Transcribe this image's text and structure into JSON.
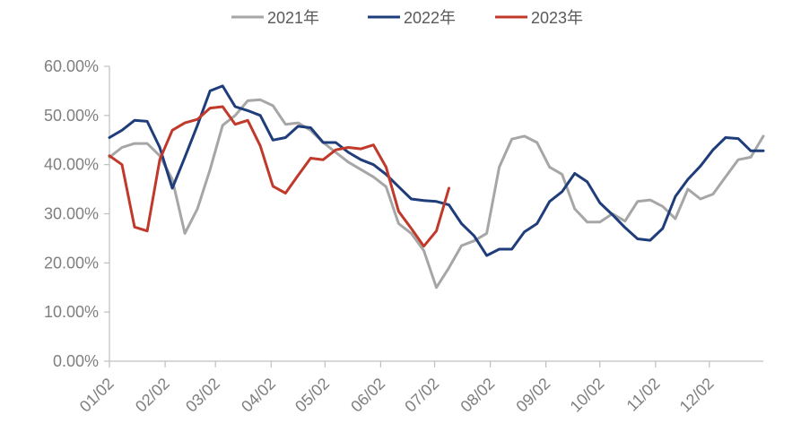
{
  "chart_data": {
    "type": "line",
    "title": "",
    "xlabel": "",
    "ylabel": "",
    "ylim": [
      0,
      60
    ],
    "x_range": [
      0,
      52
    ],
    "y_tick_values": [
      0,
      10,
      20,
      30,
      40,
      50,
      60
    ],
    "y_tick_labels": [
      "0.00%",
      "10.00%",
      "20.00%",
      "30.00%",
      "40.00%",
      "50.00%",
      "60.00%"
    ],
    "x_ticks": [
      {
        "week": 0,
        "label": "01/02"
      },
      {
        "week": 4.43,
        "label": "02/02"
      },
      {
        "week": 8.43,
        "label": "03/02"
      },
      {
        "week": 12.86,
        "label": "04/02"
      },
      {
        "week": 17.14,
        "label": "05/02"
      },
      {
        "week": 21.57,
        "label": "06/02"
      },
      {
        "week": 25.86,
        "label": "07/02"
      },
      {
        "week": 30.29,
        "label": "08/02"
      },
      {
        "week": 34.71,
        "label": "09/02"
      },
      {
        "week": 39.0,
        "label": "10/02"
      },
      {
        "week": 43.43,
        "label": "11/02"
      },
      {
        "week": 47.71,
        "label": "12/02"
      }
    ],
    "grid": false,
    "legend": "top",
    "series": [
      {
        "name": "2021年",
        "color": "#a6a6a6",
        "x": [
          0,
          1,
          2,
          3,
          4,
          5,
          6,
          7,
          8,
          9,
          10,
          11,
          12,
          13,
          14,
          15,
          16,
          17,
          18,
          19,
          20,
          21,
          22,
          23,
          24,
          25,
          26,
          27,
          28,
          29,
          30,
          31,
          32,
          33,
          34,
          35,
          36,
          37,
          38,
          39,
          40,
          41,
          42,
          43,
          44,
          45,
          46,
          47,
          48,
          49,
          50,
          51,
          52
        ],
        "values": [
          41.5,
          43.5,
          44.3,
          44.3,
          41.8,
          37.0,
          26.0,
          31.0,
          39.0,
          48.0,
          50.0,
          53.0,
          53.2,
          52.0,
          48.2,
          48.5,
          47.0,
          44.5,
          42.5,
          40.5,
          39.0,
          37.5,
          35.5,
          28.0,
          26.0,
          22.5,
          15.0,
          19.0,
          23.5,
          24.5,
          26.0,
          39.5,
          45.2,
          45.8,
          44.5,
          39.5,
          38.0,
          31.0,
          28.3,
          28.3,
          30.0,
          28.5,
          32.5,
          32.8,
          31.5,
          29.0,
          35.0,
          33.0,
          34.0,
          37.5,
          41.0,
          41.5,
          45.8
        ]
      },
      {
        "name": "2022年",
        "color": "#1f3d7a",
        "x": [
          0,
          1,
          2,
          3,
          4,
          5,
          6,
          7,
          8,
          9,
          10,
          11,
          12,
          13,
          14,
          15,
          16,
          17,
          18,
          19,
          20,
          21,
          22,
          23,
          24,
          25,
          26,
          27,
          28,
          29,
          30,
          31,
          32,
          33,
          34,
          35,
          36,
          37,
          38,
          39,
          40,
          41,
          42,
          43,
          44,
          45,
          46,
          47,
          48,
          49,
          50,
          51,
          52
        ],
        "values": [
          45.5,
          47.0,
          49.0,
          48.8,
          43.5,
          35.2,
          41.5,
          48.0,
          55.0,
          56.0,
          51.8,
          51.0,
          50.0,
          45.0,
          45.5,
          47.8,
          47.5,
          44.5,
          44.5,
          42.5,
          41.0,
          40.0,
          38.0,
          35.5,
          33.0,
          32.7,
          32.5,
          31.8,
          28.0,
          25.5,
          21.5,
          22.8,
          22.8,
          26.3,
          28.0,
          32.5,
          34.5,
          38.2,
          36.5,
          32.2,
          29.8,
          27.2,
          24.9,
          24.6,
          27.0,
          33.5,
          37.0,
          39.7,
          43.0,
          45.5,
          45.3,
          42.8,
          42.8
        ]
      },
      {
        "name": "2023年",
        "color": "#c0392b",
        "x": [
          0,
          1,
          2,
          3,
          4,
          5,
          6,
          7,
          8,
          9,
          10,
          11,
          12,
          13,
          14,
          15,
          16,
          17,
          18,
          19,
          20,
          21,
          22,
          23,
          24,
          25,
          26,
          27
        ],
        "values": [
          41.8,
          40.0,
          27.3,
          26.5,
          41.0,
          47.0,
          48.5,
          49.2,
          51.5,
          51.8,
          48.2,
          49.0,
          43.8,
          35.6,
          34.2,
          37.8,
          41.3,
          41.0,
          43.0,
          43.5,
          43.2,
          44.0,
          39.5,
          30.5,
          27.0,
          23.4,
          26.5,
          35.2
        ]
      }
    ]
  }
}
